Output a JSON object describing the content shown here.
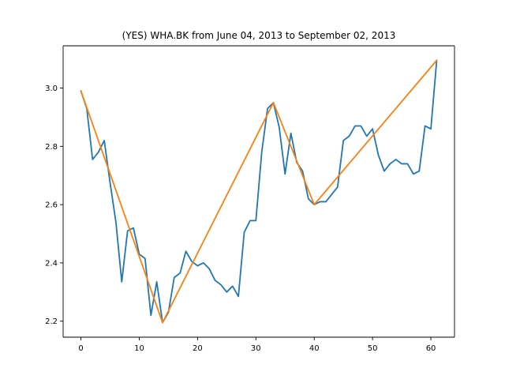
{
  "chart_data": {
    "type": "line",
    "title": "(YES) WHA.BK from June 04, 2013 to September 02, 2013",
    "xlabel": "",
    "ylabel": "",
    "xlim": [
      -3.05,
      64.05
    ],
    "ylim": [
      2.145,
      3.145
    ],
    "xticks": [
      0,
      10,
      20,
      30,
      40,
      50,
      60
    ],
    "yticks": [
      2.2,
      2.4,
      2.6,
      2.8,
      3.0
    ],
    "xtick_labels": [
      "0",
      "10",
      "20",
      "30",
      "40",
      "50",
      "60"
    ],
    "ytick_labels": [
      "2.2",
      "2.4",
      "2.6",
      "2.8",
      "3.0"
    ],
    "grid": false,
    "legend": "none",
    "series": [
      {
        "color": "#1f77b4",
        "x": [
          0,
          1,
          2,
          3,
          4,
          5,
          6,
          7,
          8,
          9,
          10,
          11,
          12,
          13,
          14,
          15,
          16,
          17,
          18,
          19,
          20,
          21,
          22,
          23,
          24,
          25,
          26,
          27,
          28,
          29,
          30,
          31,
          32,
          33,
          34,
          35,
          36,
          37,
          38,
          39,
          40,
          41,
          42,
          43,
          44,
          45,
          46,
          47,
          48,
          49,
          50,
          51,
          52,
          53,
          54,
          55,
          56,
          57,
          58,
          59,
          60,
          61
        ],
        "y": [
          2.99,
          2.93,
          2.755,
          2.78,
          2.82,
          2.675,
          2.54,
          2.335,
          2.51,
          2.52,
          2.43,
          2.415,
          2.22,
          2.335,
          2.195,
          2.23,
          2.35,
          2.365,
          2.44,
          2.405,
          2.39,
          2.4,
          2.38,
          2.34,
          2.325,
          2.3,
          2.32,
          2.285,
          2.505,
          2.545,
          2.545,
          2.78,
          2.93,
          2.95,
          2.865,
          2.705,
          2.845,
          2.745,
          2.715,
          2.62,
          2.6,
          2.61,
          2.61,
          2.635,
          2.66,
          2.82,
          2.835,
          2.87,
          2.87,
          2.835,
          2.86,
          2.77,
          2.715,
          2.74,
          2.755,
          2.74,
          2.74,
          2.705,
          2.715,
          2.87,
          2.86,
          3.095
        ]
      },
      {
        "color": "#ff7f0e",
        "x": [
          0,
          14,
          33,
          40,
          61
        ],
        "y": [
          2.99,
          2.195,
          2.95,
          2.6,
          3.095
        ]
      }
    ]
  }
}
